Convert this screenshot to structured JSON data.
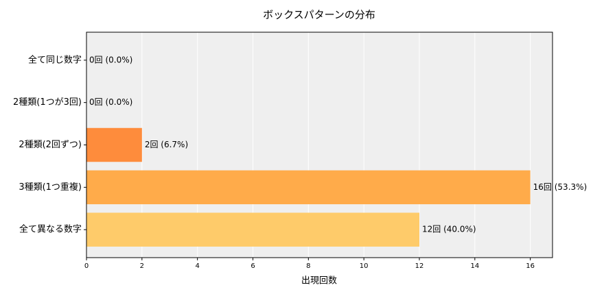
{
  "chart_data": {
    "type": "hbar",
    "title": "ボックスパターンの分布",
    "xlabel": "出現回数",
    "categories": [
      "全て同じ数字",
      "2種類(1つが3回)",
      "2種類(2回ずつ)",
      "3種類(1つ重複)",
      "全て異なる数字"
    ],
    "values": [
      0,
      0,
      2,
      16,
      12
    ],
    "value_labels": [
      "0回 (0.0%)",
      "0回 (0.0%)",
      "2回 (6.7%)",
      "16回 (53.3%)",
      "12回 (40.0%)"
    ],
    "colors": [
      "#f46d2a",
      "#f97b33",
      "#fe8c3c",
      "#ffab4a",
      "#fecb6a"
    ],
    "xlim": [
      0,
      16.8
    ],
    "xticks": [
      0,
      2,
      4,
      6,
      8,
      10,
      12,
      14,
      16
    ],
    "grid": true
  }
}
